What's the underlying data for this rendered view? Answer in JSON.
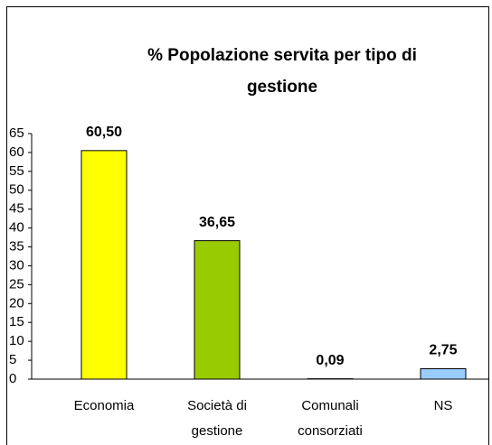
{
  "chart_data": {
    "type": "bar",
    "title": "% Popolazione servita per tipo di gestione",
    "categories": [
      "Economia",
      "Società di gestione",
      "Comunali consorziati",
      "NS"
    ],
    "values": [
      60.5,
      36.65,
      0.09,
      2.75
    ],
    "value_labels": [
      "60,50",
      "36,65",
      "0,09",
      "2,75"
    ],
    "colors": [
      "#ffff00",
      "#99cc00",
      "#9999ff",
      "#99ccff"
    ],
    "ylim": [
      0,
      65
    ],
    "yticks": [
      0,
      5,
      10,
      15,
      20,
      25,
      30,
      35,
      40,
      45,
      50,
      55,
      60,
      65
    ],
    "grid": false
  }
}
